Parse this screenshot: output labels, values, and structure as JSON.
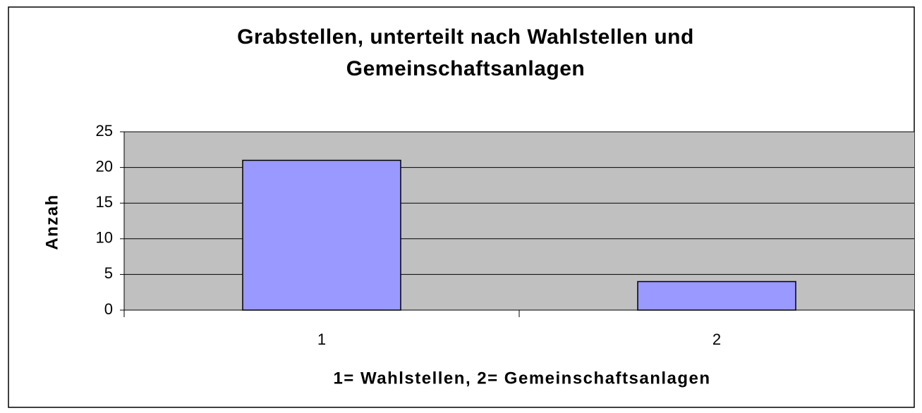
{
  "chart_data": {
    "type": "bar",
    "title": "Grabstellen, unterteilt nach Wahlstellen und Gemeinschaftsanlagen",
    "x_label": "1= Wahlstellen, 2= Gemeinschaftsanlagen",
    "y_label": "Anzah",
    "categories": [
      "1",
      "2"
    ],
    "values": [
      21,
      4
    ],
    "color": "#9999ff",
    "ylim": [
      0,
      25
    ],
    "yticks": [
      0,
      5,
      10,
      15,
      20,
      25
    ],
    "grid": true
  }
}
